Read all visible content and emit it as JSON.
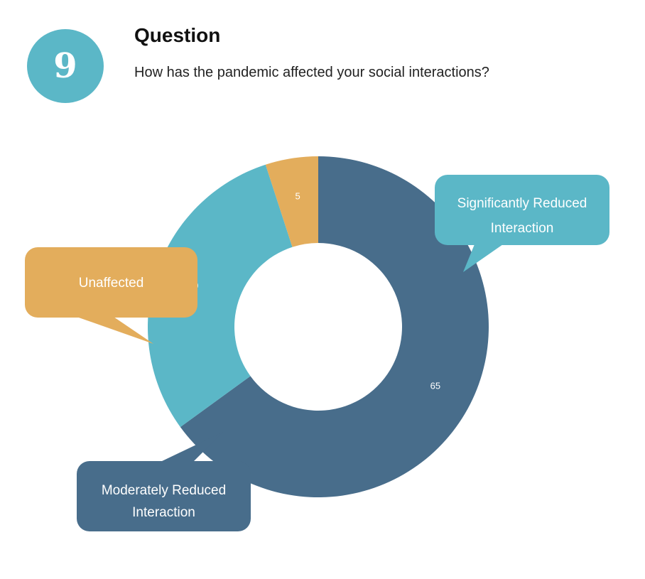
{
  "header": {
    "number": "9",
    "title": "Question",
    "question": "How has the pandemic affected your social interactions?"
  },
  "chart_data": {
    "type": "pie",
    "donut": true,
    "categories": [
      "Significantly Reduced Interaction",
      "Moderately Reduced Interaction",
      "Unaffected"
    ],
    "values": [
      65,
      30,
      5
    ],
    "colors": [
      "#486d8b",
      "#5bb7c7",
      "#e3ad5c"
    ],
    "callouts": [
      {
        "lines": [
          "Significantly Reduced",
          "Interaction"
        ],
        "color": "#5bb7c7"
      },
      {
        "lines": [
          "Moderately Reduced",
          "Interaction"
        ],
        "color": "#486d8b"
      },
      {
        "lines": [
          "Unaffected"
        ],
        "color": "#e3ad5c"
      }
    ]
  }
}
